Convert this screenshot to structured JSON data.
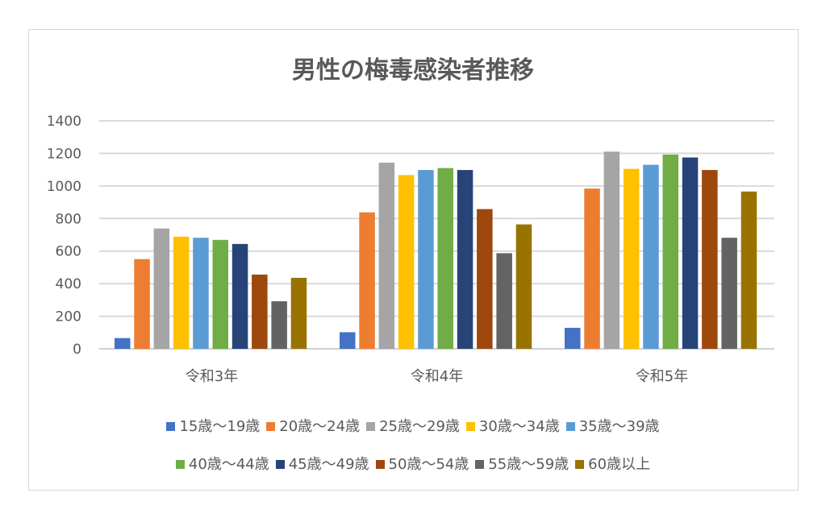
{
  "chart_data": {
    "type": "bar",
    "title": "男性の梅毒感染者推移",
    "xlabel": "",
    "ylabel": "",
    "ylim": [
      0,
      1400
    ],
    "yticks": [
      0,
      200,
      400,
      600,
      800,
      1000,
      1200,
      1400
    ],
    "grid": true,
    "legend_position": "bottom",
    "categories": [
      "令和3年",
      "令和4年",
      "令和5年"
    ],
    "series": [
      {
        "name": "15歳～19歳",
        "color": "#4472c4",
        "values": [
          66,
          102,
          129
        ]
      },
      {
        "name": "20歳～24歳",
        "color": "#ed7d31",
        "values": [
          551,
          838,
          984
        ]
      },
      {
        "name": "25歳～29歳",
        "color": "#a5a5a5",
        "values": [
          739,
          1143,
          1211
        ]
      },
      {
        "name": "30歳～34歳",
        "color": "#ffc000",
        "values": [
          689,
          1067,
          1105
        ]
      },
      {
        "name": "35歳～39歳",
        "color": "#5b9bd5",
        "values": [
          682,
          1098,
          1130
        ]
      },
      {
        "name": "40歳～44歳",
        "color": "#70ad47",
        "values": [
          669,
          1110,
          1193
        ]
      },
      {
        "name": "45歳～49歳",
        "color": "#264478",
        "values": [
          644,
          1098,
          1175
        ]
      },
      {
        "name": "50歳～54歳",
        "color": "#9e480e",
        "values": [
          456,
          858,
          1098
        ]
      },
      {
        "name": "55歳～59歳",
        "color": "#636363",
        "values": [
          292,
          587,
          682
        ]
      },
      {
        "name": "60歳以上",
        "color": "#997300",
        "values": [
          436,
          764,
          966
        ]
      }
    ]
  }
}
